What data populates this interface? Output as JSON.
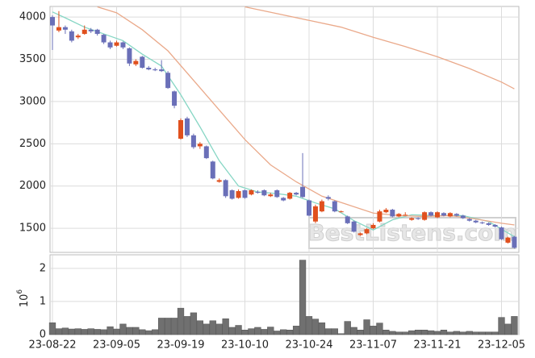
{
  "chart_data": [
    {
      "type": "candlestick",
      "open": [
        4000,
        3840,
        3880,
        3830,
        3760,
        3800,
        3850,
        3850,
        3790,
        3700,
        3660,
        3700,
        3630,
        3440,
        3530,
        3400,
        3380,
        3380,
        3340,
        3120,
        2560,
        2800,
        2600,
        2470,
        2470,
        2290,
        2050,
        2070,
        1950,
        1860,
        1950,
        1900,
        1930,
        1950,
        1880,
        1950,
        1860,
        1850,
        1920,
        1990,
        1830,
        1580,
        1700,
        1870,
        1820,
        1700,
        1640,
        1580,
        1420,
        1440,
        1500,
        1580,
        1690,
        1720,
        1640,
        1660,
        1600,
        1620,
        1600,
        1690,
        1630,
        1680,
        1640,
        1670,
        1650,
        1610,
        1590,
        1570,
        1560,
        1540,
        1510,
        1330,
        1400
      ],
      "high": [
        4020,
        4070,
        3900,
        3850,
        3800,
        3900,
        3870,
        3860,
        3800,
        3720,
        3720,
        3710,
        3640,
        3500,
        3540,
        3420,
        3400,
        3490,
        3360,
        3130,
        2800,
        2820,
        2620,
        2520,
        2480,
        2300,
        2090,
        2080,
        1960,
        1960,
        1960,
        1960,
        1950,
        1960,
        1920,
        1960,
        1870,
        1930,
        1930,
        2390,
        1840,
        1780,
        1840,
        1890,
        1830,
        1710,
        1650,
        1590,
        1450,
        1500,
        1560,
        1720,
        1740,
        1730,
        1680,
        1690,
        1630,
        1630,
        1700,
        1700,
        1700,
        1690,
        1690,
        1680,
        1660,
        1620,
        1600,
        1580,
        1570,
        1550,
        1520,
        1400,
        1410
      ],
      "low": [
        3610,
        3820,
        3800,
        3700,
        3740,
        3790,
        3810,
        3780,
        3680,
        3620,
        3650,
        3620,
        3420,
        3420,
        3390,
        3370,
        3360,
        3350,
        3150,
        2920,
        2550,
        2580,
        2440,
        2440,
        2320,
        2080,
        2040,
        1860,
        1840,
        1850,
        1850,
        1890,
        1910,
        1880,
        1870,
        1860,
        1820,
        1840,
        1890,
        1860,
        1640,
        1560,
        1690,
        1830,
        1690,
        1690,
        1550,
        1450,
        1410,
        1430,
        1490,
        1570,
        1680,
        1630,
        1630,
        1650,
        1590,
        1600,
        1590,
        1640,
        1620,
        1640,
        1630,
        1640,
        1610,
        1580,
        1560,
        1550,
        1530,
        1510,
        1360,
        1320,
        1260
      ],
      "close": [
        3900,
        3880,
        3850,
        3720,
        3780,
        3850,
        3830,
        3800,
        3700,
        3640,
        3700,
        3640,
        3450,
        3480,
        3400,
        3380,
        3370,
        3360,
        3160,
        2950,
        2780,
        2600,
        2460,
        2500,
        2330,
        2090,
        2070,
        1880,
        1850,
        1940,
        1860,
        1950,
        1920,
        1890,
        1900,
        1870,
        1830,
        1920,
        1900,
        1870,
        1650,
        1760,
        1820,
        1850,
        1700,
        1700,
        1560,
        1460,
        1440,
        1490,
        1540,
        1700,
        1720,
        1640,
        1670,
        1660,
        1620,
        1610,
        1690,
        1650,
        1690,
        1650,
        1680,
        1650,
        1620,
        1590,
        1570,
        1560,
        1540,
        1520,
        1370,
        1390,
        1270
      ],
      "up_color": "#e0501e",
      "down_color": "#6a6fb8",
      "series": [
        {
          "color": "#86d6c4",
          "x": [
            0,
            2,
            5,
            8,
            11,
            14,
            17,
            20,
            23,
            26,
            29,
            32,
            35,
            38,
            41,
            44,
            47,
            50,
            53,
            56,
            60,
            64,
            68,
            72
          ],
          "values": [
            4060,
            3990,
            3880,
            3800,
            3720,
            3560,
            3420,
            3080,
            2700,
            2300,
            2000,
            1930,
            1910,
            1880,
            1800,
            1730,
            1590,
            1480,
            1600,
            1660,
            1650,
            1650,
            1580,
            1400
          ]
        },
        {
          "color": "#eaa98a",
          "x": [
            7,
            10,
            14,
            18,
            22,
            26,
            30,
            34,
            38,
            42,
            46,
            50,
            54,
            58,
            62,
            66,
            70,
            72
          ],
          "values": [
            4120,
            4050,
            3850,
            3600,
            3250,
            2900,
            2550,
            2250,
            2050,
            1880,
            1780,
            1680,
            1650,
            1640,
            1650,
            1610,
            1560,
            1540
          ]
        },
        {
          "color": "#eaa98a",
          "x": [
            30,
            35,
            40,
            45,
            50,
            55,
            60,
            65,
            70,
            72
          ],
          "values": [
            4120,
            4040,
            3960,
            3880,
            3760,
            3650,
            3530,
            3390,
            3230,
            3150
          ]
        }
      ],
      "ylim": [
        1215,
        4125
      ],
      "yticks": [
        1500,
        2000,
        2500,
        3000,
        3500,
        4000
      ],
      "grid": true,
      "watermark": "BestListens.com"
    },
    {
      "type": "bar",
      "categories": [
        "23-08-22",
        null,
        null,
        null,
        null,
        null,
        null,
        null,
        null,
        null,
        "23-09-05",
        null,
        null,
        null,
        null,
        null,
        null,
        null,
        null,
        null,
        "23-09-19",
        null,
        null,
        null,
        null,
        null,
        null,
        null,
        null,
        null,
        "23-10-10",
        null,
        null,
        null,
        null,
        null,
        null,
        null,
        null,
        null,
        "23-10-24",
        null,
        null,
        null,
        null,
        null,
        null,
        null,
        null,
        null,
        "23-11-07",
        null,
        null,
        null,
        null,
        null,
        null,
        null,
        null,
        null,
        "23-11-21",
        null,
        null,
        null,
        null,
        null,
        null,
        null,
        null,
        null,
        "23-12-05",
        null,
        null
      ],
      "values": [
        0.36,
        0.18,
        0.2,
        0.17,
        0.18,
        0.16,
        0.18,
        0.16,
        0.15,
        0.24,
        0.17,
        0.32,
        0.22,
        0.22,
        0.15,
        0.12,
        0.15,
        0.5,
        0.5,
        0.5,
        0.8,
        0.55,
        0.66,
        0.42,
        0.32,
        0.42,
        0.32,
        0.48,
        0.22,
        0.28,
        0.14,
        0.18,
        0.22,
        0.16,
        0.23,
        0.11,
        0.15,
        0.14,
        0.26,
        2.25,
        0.55,
        0.47,
        0.36,
        0.18,
        0.18,
        0.03,
        0.4,
        0.22,
        0.14,
        0.45,
        0.26,
        0.35,
        0.14,
        0.1,
        0.08,
        0.08,
        0.12,
        0.14,
        0.14,
        0.12,
        0.1,
        0.14,
        0.08,
        0.1,
        0.08,
        0.1,
        0.08,
        0.08,
        0.08,
        0.08,
        0.52,
        0.32,
        0.55
      ],
      "color": "#707070",
      "ylim": [
        0,
        2.41
      ],
      "yticks": [
        0,
        1,
        2
      ],
      "grid": true,
      "y_unit": {
        "base": "10",
        "exponent": "6"
      }
    }
  ]
}
